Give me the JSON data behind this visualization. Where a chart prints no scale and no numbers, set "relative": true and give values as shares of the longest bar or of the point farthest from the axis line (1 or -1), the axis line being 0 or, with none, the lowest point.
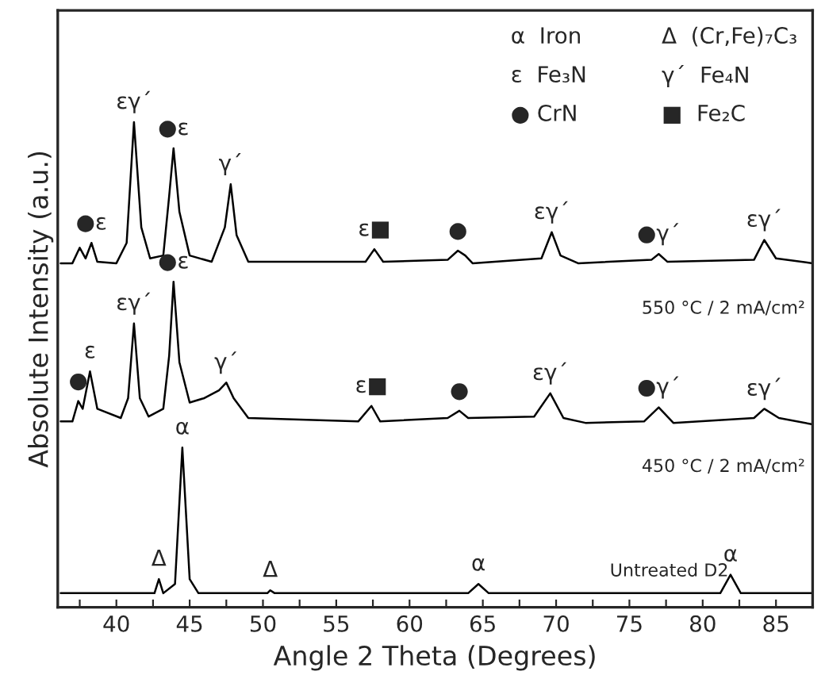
{
  "chart_data": {
    "type": "line",
    "relative": true,
    "xlabel": "Angle 2 Theta (Degrees)",
    "ylabel": "Absolute Intensity (a.u.)",
    "xlim": [
      36,
      87.5
    ],
    "xticks": [
      {
        "value": 37.5,
        "label": null
      },
      40,
      {
        "value": 42.5,
        "label": null
      },
      45,
      {
        "value": 47.5,
        "label": null
      },
      50,
      {
        "value": 52.5,
        "label": null
      },
      55,
      {
        "value": 57.5,
        "label": null
      },
      60,
      {
        "value": 62.5,
        "label": null
      },
      65,
      {
        "value": 67.5,
        "label": null
      },
      70,
      {
        "value": 72.5,
        "label": null
      },
      75,
      {
        "value": 77.5,
        "label": null
      },
      80,
      {
        "value": 82.5,
        "label": null
      },
      85
    ],
    "tick_labels": "x",
    "grid": false,
    "legend": false,
    "marker": "none",
    "line_style": "solid",
    "series": [
      {
        "color": "#000000",
        "x": [
          36.2,
          37.0,
          37.5,
          37.9,
          38.3,
          38.7,
          40.0,
          40.7,
          41.2,
          41.7,
          42.3,
          43.2,
          43.6,
          43.9,
          44.3,
          45.0,
          46.5,
          47.4,
          47.8,
          48.2,
          49.0,
          57.0,
          57.6,
          58.2,
          62.6,
          63.3,
          63.8,
          64.3,
          69.0,
          69.7,
          70.3,
          71.5,
          76.5,
          77.0,
          77.6,
          83.5,
          84.2,
          85.0,
          87.5
        ],
        "values": [
          0.709,
          0.709,
          0.741,
          0.719,
          0.751,
          0.712,
          0.709,
          0.751,
          1.0,
          0.783,
          0.719,
          0.725,
          0.847,
          0.946,
          0.815,
          0.725,
          0.712,
          0.783,
          0.872,
          0.767,
          0.712,
          0.712,
          0.738,
          0.712,
          0.716,
          0.735,
          0.725,
          0.709,
          0.719,
          0.773,
          0.725,
          0.709,
          0.716,
          0.728,
          0.712,
          0.716,
          0.757,
          0.719,
          0.709
        ]
      },
      {
        "color": "#000000",
        "x": [
          36.2,
          37.0,
          37.4,
          37.7,
          38.2,
          38.7,
          40.3,
          40.8,
          41.2,
          41.6,
          42.2,
          43.2,
          43.6,
          43.9,
          44.3,
          45.0,
          46.0,
          47.0,
          47.5,
          48.0,
          49.0,
          56.5,
          57.4,
          58.0,
          62.6,
          63.4,
          64.0,
          68.5,
          69.6,
          70.5,
          72.0,
          76.0,
          77.0,
          78.0,
          83.5,
          84.2,
          85.2,
          87.5
        ],
        "values": [
          0.383,
          0.383,
          0.425,
          0.409,
          0.486,
          0.409,
          0.39,
          0.431,
          0.585,
          0.431,
          0.393,
          0.409,
          0.518,
          0.671,
          0.505,
          0.422,
          0.431,
          0.447,
          0.463,
          0.431,
          0.39,
          0.383,
          0.415,
          0.383,
          0.39,
          0.405,
          0.39,
          0.393,
          0.441,
          0.39,
          0.38,
          0.383,
          0.412,
          0.38,
          0.39,
          0.409,
          0.39,
          0.377
        ]
      },
      {
        "color": "#000000",
        "x": [
          36.2,
          37.0,
          42.6,
          42.9,
          43.2,
          44.0,
          44.5,
          45.0,
          45.6,
          50.3,
          50.5,
          50.8,
          64.0,
          64.7,
          65.4,
          81.2,
          81.9,
          82.6,
          87.5
        ],
        "values": [
          0.029,
          0.029,
          0.029,
          0.058,
          0.029,
          0.048,
          0.329,
          0.058,
          0.029,
          0.029,
          0.035,
          0.029,
          0.029,
          0.048,
          0.029,
          0.029,
          0.067,
          0.029,
          0.029
        ]
      }
    ],
    "annotations": [
      "α  Iron",
      "Δ  (Cr,Fe)₇C₃",
      "ε  Fe₃N",
      "γ´  Fe₄N",
      "● CrN",
      "■  Fe₂C",
      "550 °C / 2 mA/cm²",
      "450 °C / 2 mA/cm²",
      "Untreated D2",
      {
        "text": "●ε",
        "x": 38.3,
        "y": 0.751
      },
      {
        "text": "εγ´",
        "x": 41.2,
        "y": 1.0
      },
      {
        "text": "●ε",
        "x": 43.9,
        "y": 0.946
      },
      {
        "text": "γ´",
        "x": 47.8,
        "y": 0.872
      },
      {
        "text": "ε■",
        "x": 57.6,
        "y": 0.738
      },
      {
        "text": "●",
        "x": 63.3,
        "y": 0.735
      },
      {
        "text": "εγ´",
        "x": 69.7,
        "y": 0.773
      },
      {
        "text": "●γ´",
        "x": 77.0,
        "y": 0.728
      },
      {
        "text": "εγ´",
        "x": 84.2,
        "y": 0.757
      },
      {
        "text": "●",
        "x": 37.4,
        "y": 0.425
      },
      {
        "text": "ε",
        "x": 38.2,
        "y": 0.486
      },
      {
        "text": "εγ´",
        "x": 41.2,
        "y": 0.585
      },
      {
        "text": "●ε",
        "x": 43.9,
        "y": 0.671
      },
      {
        "text": "γ´",
        "x": 47.5,
        "y": 0.463
      },
      {
        "text": "ε■",
        "x": 57.4,
        "y": 0.415
      },
      {
        "text": "●",
        "x": 63.4,
        "y": 0.405
      },
      {
        "text": "εγ´",
        "x": 69.6,
        "y": 0.441
      },
      {
        "text": "●γ´",
        "x": 77.0,
        "y": 0.412
      },
      {
        "text": "εγ´",
        "x": 84.2,
        "y": 0.409
      },
      {
        "text": "α",
        "x": 44.5,
        "y": 0.329
      },
      {
        "text": "Δ",
        "x": 42.9,
        "y": 0.058
      },
      {
        "text": "Δ",
        "x": 50.5,
        "y": 0.035
      },
      {
        "text": "α",
        "x": 64.7,
        "y": 0.048
      },
      {
        "text": "α",
        "x": 81.9,
        "y": 0.067
      }
    ]
  }
}
